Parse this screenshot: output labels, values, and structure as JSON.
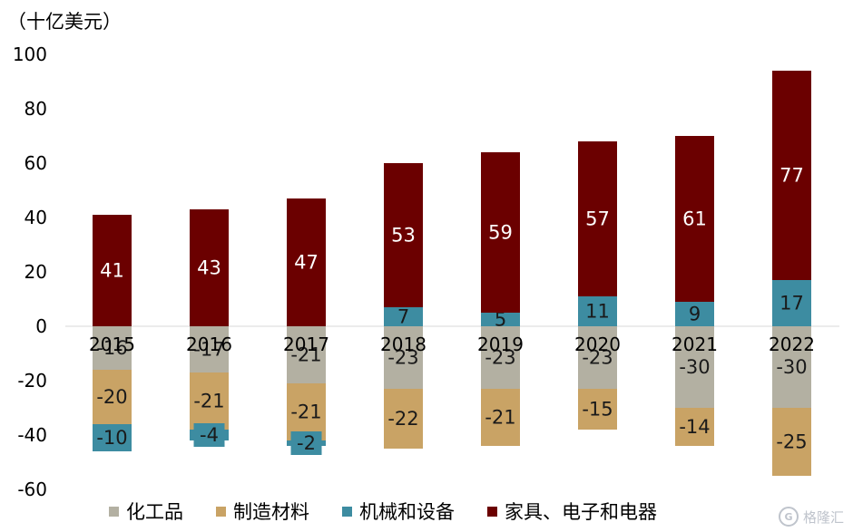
{
  "unit_label": "（十亿美元）",
  "legend": [
    {
      "name": "化工品",
      "color": "#b3b0a2"
    },
    {
      "name": "制造材料",
      "color": "#c9a365"
    },
    {
      "name": "机械和设备",
      "color": "#3d8ca1"
    },
    {
      "name": "家具、电子和电器",
      "color": "#6b0000"
    }
  ],
  "watermark": {
    "logo": "G",
    "text": "格隆汇"
  },
  "chart_data": {
    "type": "bar",
    "stacked": true,
    "categories": [
      "2015",
      "2016",
      "2017",
      "2018",
      "2019",
      "2020",
      "2021",
      "2022"
    ],
    "ylim": [
      -60,
      100
    ],
    "yticks": [
      100,
      80,
      60,
      40,
      20,
      0,
      -20,
      -40,
      -60
    ],
    "series": [
      {
        "name": "化工品",
        "values": [
          -16,
          -17,
          -21,
          -23,
          -23,
          -23,
          -30,
          -30
        ],
        "color": "#b3b0a2"
      },
      {
        "name": "制造材料",
        "values": [
          -20,
          -21,
          -21,
          -22,
          -21,
          -15,
          -14,
          -25
        ],
        "color": "#c9a365"
      },
      {
        "name": "机械和设备",
        "values": [
          -10,
          -4,
          -2,
          7,
          5,
          11,
          9,
          17
        ],
        "color": "#3d8ca1"
      },
      {
        "name": "家具、电子和电器",
        "values": [
          41,
          43,
          47,
          53,
          59,
          57,
          61,
          77
        ],
        "color": "#6b0000"
      }
    ]
  }
}
